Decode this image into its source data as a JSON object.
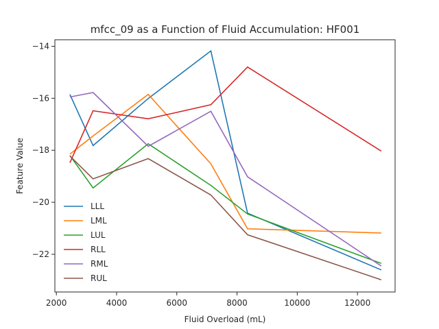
{
  "chart_data": {
    "type": "line",
    "title": "mfcc_09 as a Function of Fluid Accumulation: HF001",
    "xlabel": "Fluid Overload (mL)",
    "ylabel": "Feature Value",
    "xlim": [
      1950,
      13250
    ],
    "ylim": [
      -23.45,
      -13.75
    ],
    "xticks": [
      2000,
      4000,
      6000,
      8000,
      10000,
      12000
    ],
    "yticks": [
      -14,
      -16,
      -18,
      -20,
      -22
    ],
    "grid": false,
    "legend_position": "lower-left",
    "x": [
      2450,
      3220,
      5050,
      7130,
      8350,
      12790
    ],
    "series": [
      {
        "name": "LLL",
        "color": "#1f77b4",
        "values": [
          -15.85,
          -17.82,
          -16.01,
          -14.18,
          -20.42,
          -22.6
        ]
      },
      {
        "name": "LML",
        "color": "#ff7f0e",
        "values": [
          -18.15,
          -17.45,
          -15.85,
          -18.52,
          -21.02,
          -21.18
        ]
      },
      {
        "name": "LUL",
        "color": "#2ca02c",
        "values": [
          -18.2,
          -19.45,
          -17.75,
          -19.35,
          -20.45,
          -22.35
        ]
      },
      {
        "name": "RLL",
        "color": "#d62728",
        "values": [
          -18.48,
          -16.48,
          -16.79,
          -16.25,
          -14.8,
          -18.03
        ]
      },
      {
        "name": "RML",
        "color": "#9467bd",
        "values": [
          -15.95,
          -15.78,
          -17.85,
          -16.5,
          -19.02,
          -22.45
        ]
      },
      {
        "name": "RUL",
        "color": "#8c564b",
        "values": [
          -18.22,
          -19.1,
          -18.32,
          -19.72,
          -21.25,
          -22.98
        ]
      }
    ]
  }
}
